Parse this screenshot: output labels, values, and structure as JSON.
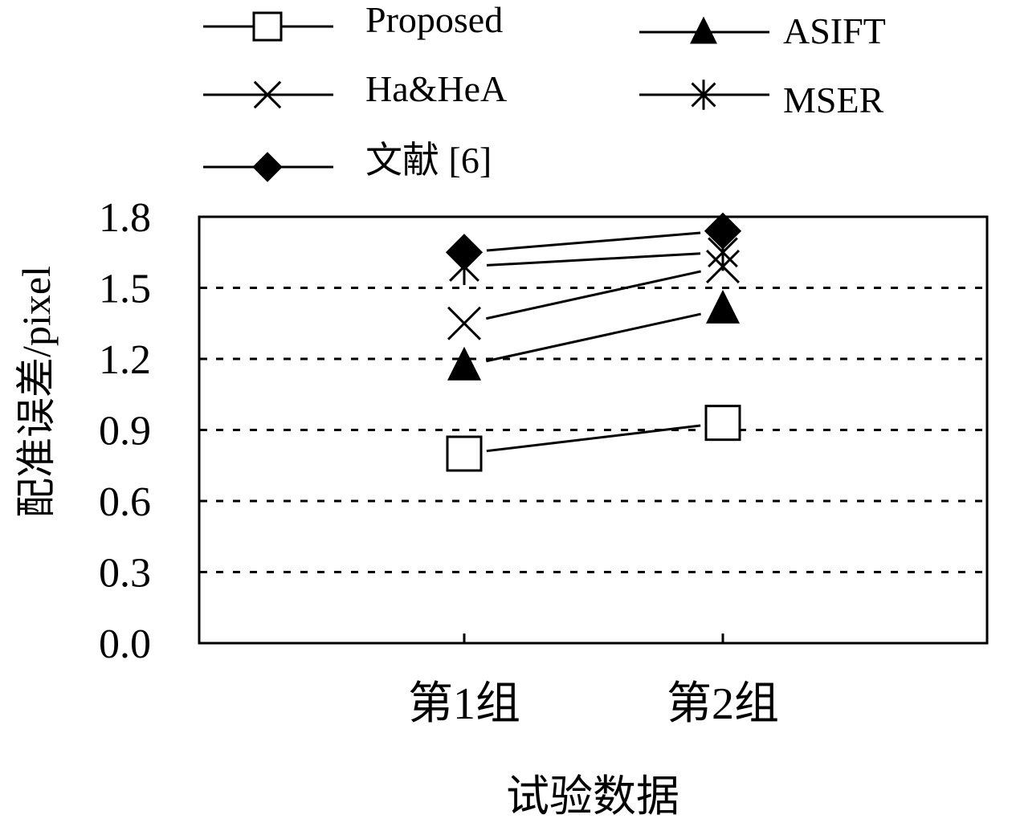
{
  "chart_data": {
    "type": "line",
    "xlabel": "试验数据",
    "ylabel": "配准误差/pixel",
    "categories": [
      "第1组",
      "第2组"
    ],
    "ylim": [
      0.0,
      1.8
    ],
    "yticks": [
      "0.0",
      "0.3",
      "0.6",
      "0.9",
      "1.2",
      "1.5",
      "1.8"
    ],
    "grid": "horizontal dotted",
    "legend_position": "top",
    "series": [
      {
        "name": "Proposed",
        "marker": "square-open",
        "values": [
          0.8,
          0.93
        ]
      },
      {
        "name": "ASIFT",
        "marker": "triangle-filled",
        "values": [
          1.17,
          1.41
        ]
      },
      {
        "name": "Ha&HeA",
        "marker": "x",
        "values": [
          1.35,
          1.59
        ]
      },
      {
        "name": "MSER",
        "marker": "asterisk",
        "values": [
          1.59,
          1.65
        ]
      },
      {
        "name": "文献 [6]",
        "marker": "diamond-filled",
        "values": [
          1.65,
          1.74
        ]
      }
    ]
  }
}
